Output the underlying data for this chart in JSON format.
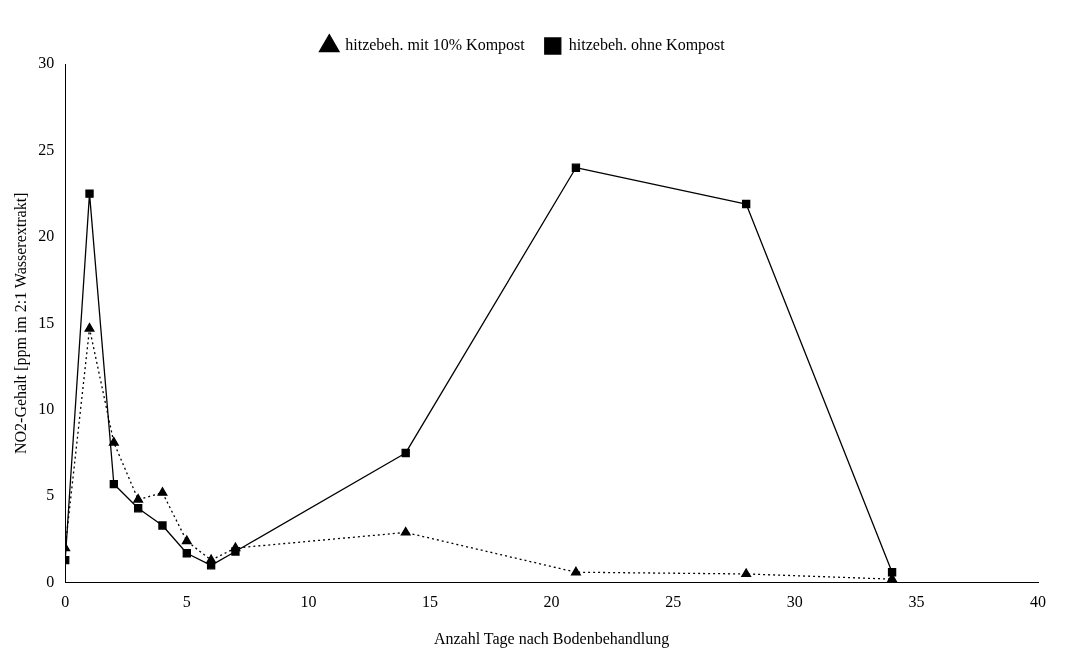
{
  "chart_data": {
    "type": "line",
    "xlabel": "Anzahl Tage nach Bodenbehandlung",
    "ylabel": "NO2-Gehalt [ppm im 2:1 Wasserextrakt]",
    "xlim": [
      0,
      40
    ],
    "xticks": [
      0,
      5,
      10,
      15,
      20,
      25,
      30,
      35,
      40
    ],
    "ylim": [
      0,
      30
    ],
    "yticks": [
      0,
      5,
      10,
      15,
      20,
      25,
      30
    ],
    "grid": false,
    "legend": "top",
    "x": [
      0,
      1,
      2,
      3,
      4,
      5,
      6,
      7,
      14,
      21,
      28,
      34
    ],
    "series": [
      {
        "name": "hitzebeh. ohne Kompost",
        "color": "#000000",
        "marker": "square",
        "line_style": "solid",
        "values": [
          1.3,
          22.5,
          5.7,
          4.3,
          3.3,
          1.7,
          1.0,
          1.8,
          7.5,
          24.0,
          21.9,
          0.6
        ]
      },
      {
        "name": "hitzebeh. mit 10% Kompost",
        "color": "#000000",
        "marker": "triangle",
        "line_style": "dotted",
        "values": [
          2.0,
          14.7,
          8.1,
          4.8,
          5.2,
          2.4,
          1.3,
          2.0,
          2.9,
          0.6,
          0.5,
          0.2
        ]
      }
    ]
  }
}
